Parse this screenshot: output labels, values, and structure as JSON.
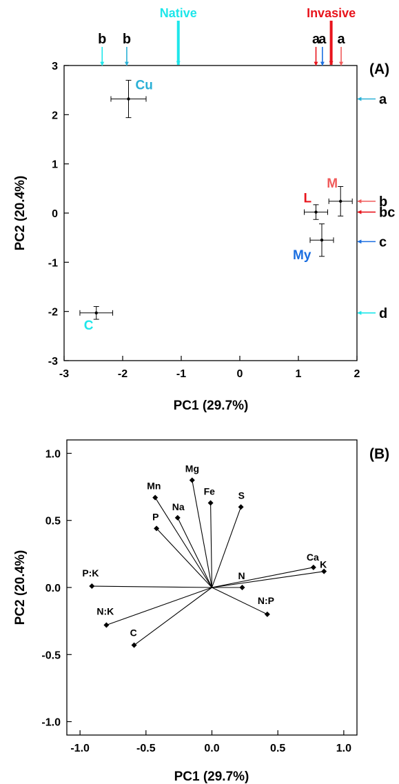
{
  "chart_data": [
    {
      "type": "scatter",
      "panel_label": "(A)",
      "xlabel": "PC1 (29.7%)",
      "ylabel": "PC2 (20.4%)",
      "xlim": [
        -3,
        2
      ],
      "ylim": [
        -3,
        3
      ],
      "xticks": [
        "-3",
        "-2",
        "-1",
        "0",
        "1",
        "2"
      ],
      "yticks": [
        "-3",
        "-2",
        "-1",
        "0",
        "1",
        "2",
        "3"
      ],
      "grid": false,
      "points": [
        {
          "label": "Cu",
          "x": -1.9,
          "y": 2.32,
          "xerr": 0.3,
          "yerr": 0.38,
          "color": "#2ab0d6"
        },
        {
          "label": "C",
          "x": -2.45,
          "y": -2.03,
          "xerr": 0.28,
          "yerr": 0.13,
          "color": "#1ee6ea"
        },
        {
          "label": "L",
          "x": 1.3,
          "y": 0.02,
          "xerr": 0.2,
          "yerr": 0.15,
          "color": "#e8141c"
        },
        {
          "label": "M",
          "x": 1.72,
          "y": 0.24,
          "xerr": 0.2,
          "yerr": 0.3,
          "color": "#f05a5a"
        },
        {
          "label": "My",
          "x": 1.4,
          "y": -0.55,
          "xerr": 0.2,
          "yerr": 0.33,
          "color": "#1a6ee0"
        }
      ],
      "top_groups": [
        {
          "label": "Native",
          "x": -1.05,
          "color": "#1ee6ea"
        },
        {
          "label": "Invasive",
          "x": 1.56,
          "color": "#e8141c"
        }
      ],
      "top_markers": [
        {
          "letter": "b",
          "x": -2.35,
          "color": "#1ee6ea"
        },
        {
          "letter": "b",
          "x": -1.93,
          "color": "#2ab0d6"
        },
        {
          "letter": "a",
          "x": 1.3,
          "color": "#e8141c"
        },
        {
          "letter": "a",
          "x": 1.41,
          "color": "#1a6ee0"
        },
        {
          "letter": "a",
          "x": 1.73,
          "color": "#f05a5a"
        }
      ],
      "right_markers": [
        {
          "letter": "a",
          "y": 2.32,
          "color": "#2ab0d6"
        },
        {
          "letter": "b",
          "y": 0.24,
          "color": "#f05a5a"
        },
        {
          "letter": "bc",
          "y": 0.02,
          "color": "#e8141c"
        },
        {
          "letter": "c",
          "y": -0.58,
          "color": "#1a6ee0"
        },
        {
          "letter": "d",
          "y": -2.03,
          "color": "#1ee6ea"
        }
      ]
    },
    {
      "type": "biplot",
      "panel_label": "(B)",
      "xlabel": "PC1 (29.7%)",
      "ylabel": "PC2 (20.4%)",
      "xlim": [
        -1.1,
        1.1
      ],
      "ylim": [
        -1.1,
        1.1
      ],
      "xticks": [
        "-1.0",
        "-0.5",
        "0.0",
        "0.5",
        "1.0"
      ],
      "yticks": [
        "-1.0",
        "-0.5",
        "0.0",
        "0.5",
        "1.0"
      ],
      "grid": false,
      "vectors": [
        {
          "label": "Mg",
          "x": -0.15,
          "y": 0.8
        },
        {
          "label": "Mn",
          "x": -0.43,
          "y": 0.67
        },
        {
          "label": "Fe",
          "x": -0.01,
          "y": 0.63
        },
        {
          "label": "S",
          "x": 0.22,
          "y": 0.6
        },
        {
          "label": "Na",
          "x": -0.26,
          "y": 0.52
        },
        {
          "label": "P",
          "x": -0.42,
          "y": 0.44
        },
        {
          "label": "Ca",
          "x": 0.77,
          "y": 0.15
        },
        {
          "label": "K",
          "x": 0.85,
          "y": 0.12
        },
        {
          "label": "N",
          "x": 0.23,
          "y": 0.0
        },
        {
          "label": "P:K",
          "x": -0.91,
          "y": 0.01
        },
        {
          "label": "N:P",
          "x": 0.42,
          "y": -0.2
        },
        {
          "label": "N:K",
          "x": -0.8,
          "y": -0.28
        },
        {
          "label": "C",
          "x": -0.59,
          "y": -0.43
        }
      ]
    }
  ]
}
